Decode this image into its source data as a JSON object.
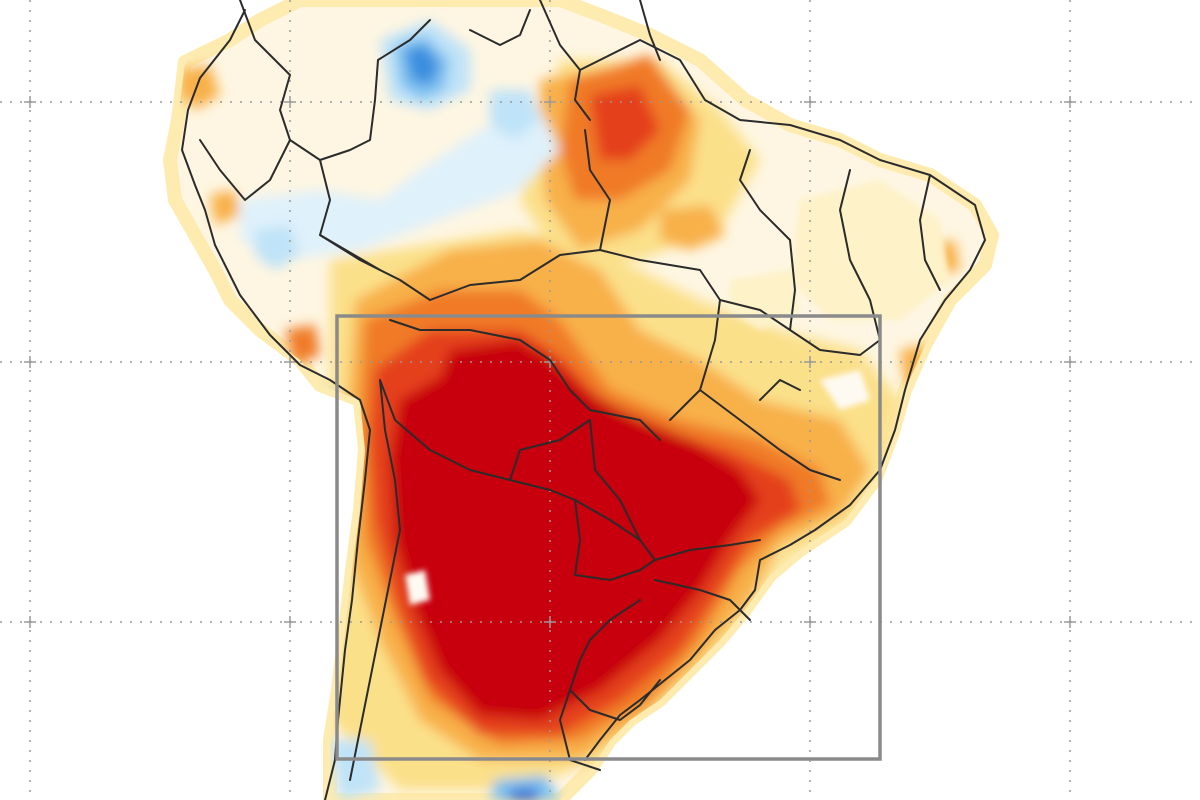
{
  "map": {
    "kind": "anomaly-heatmap",
    "region": "South America",
    "colors": {
      "extreme_warm": "#c8000c",
      "strong_warm": "#e4401a",
      "warm": "#f07a28",
      "mild_warm": "#f8b048",
      "light_warm": "#fbe08a",
      "faint_warm": "#fdf2c8",
      "neutral": "#fefaf2",
      "faint_cool": "#dff1fb",
      "light_cool": "#bfe3f8",
      "cool": "#7cc0ef",
      "strong_cool": "#3a8ddf",
      "extreme_cool": "#1b5bd0",
      "borders": "#2b2b2b",
      "highlight_box": "#8a8a8a",
      "graticule": "#9a9a9a"
    },
    "graticule": {
      "style": "dotted",
      "shown": true
    },
    "highlight_box": {
      "shown": true
    }
  }
}
